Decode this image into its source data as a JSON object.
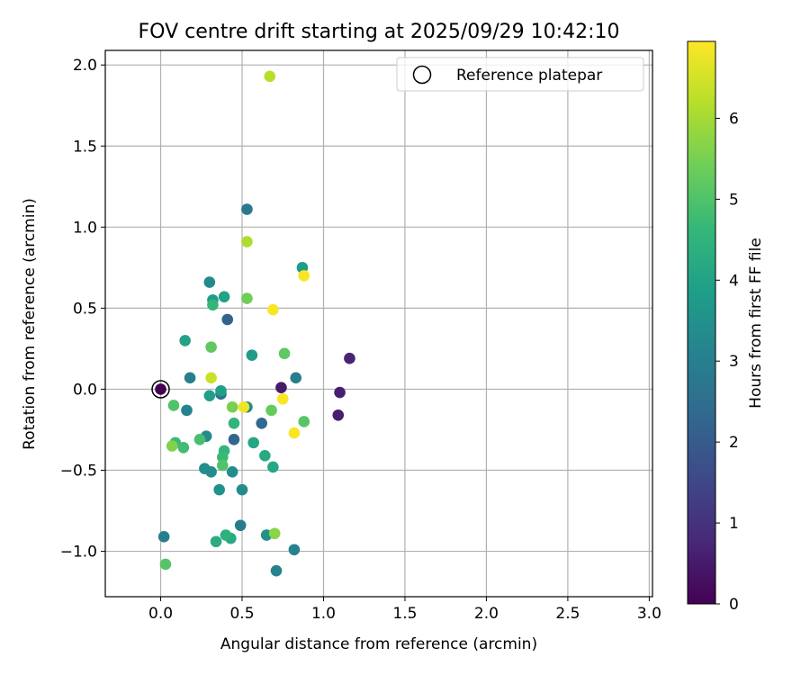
{
  "chart_data": {
    "type": "scatter",
    "title": "FOV centre drift starting at 2025/09/29 10:42:10",
    "xlabel": "Angular distance from reference (arcmin)",
    "ylabel": "Rotation from reference (arcmin)",
    "xlim": [
      -0.34,
      3.02
    ],
    "ylim": [
      -1.28,
      2.09
    ],
    "xticks": [
      0.0,
      0.5,
      1.0,
      1.5,
      2.0,
      2.5,
      3.0
    ],
    "xtick_labels": [
      "0.0",
      "0.5",
      "1.0",
      "1.5",
      "2.0",
      "2.5",
      "3.0"
    ],
    "yticks": [
      -1.0,
      -0.5,
      0.0,
      0.5,
      1.0,
      1.5,
      2.0
    ],
    "ytick_labels": [
      "−1.0",
      "−0.5",
      "0.0",
      "0.5",
      "1.0",
      "1.5",
      "2.0"
    ],
    "grid": true,
    "legend": {
      "placement": "top-right",
      "entries": [
        "Reference platepar"
      ]
    },
    "colorbar": {
      "label": "Hours from first FF file",
      "colormap": "viridis",
      "range": [
        0,
        6.95
      ],
      "ticks": [
        0,
        1,
        2,
        3,
        4,
        5,
        6
      ],
      "tick_labels": [
        "0",
        "1",
        "2",
        "3",
        "4",
        "5",
        "6"
      ],
      "stops": [
        "#440154",
        "#482878",
        "#3e4989",
        "#31688e",
        "#26828e",
        "#1f9e89",
        "#35b779",
        "#6ece58",
        "#b5de2b",
        "#fde725"
      ]
    },
    "reference_point": {
      "x": 0.0,
      "y": 0.0
    },
    "points": [
      {
        "x": 0.0,
        "y": 0.0,
        "h": 0.0
      },
      {
        "x": 0.74,
        "y": 0.01,
        "h": 0.5
      },
      {
        "x": 1.1,
        "y": -0.02,
        "h": 0.6
      },
      {
        "x": 1.09,
        "y": -0.16,
        "h": 0.6
      },
      {
        "x": 1.16,
        "y": 0.19,
        "h": 0.7
      },
      {
        "x": 0.41,
        "y": 0.43,
        "h": 2.2
      },
      {
        "x": 0.45,
        "y": -0.31,
        "h": 2.3
      },
      {
        "x": 0.62,
        "y": -0.21,
        "h": 2.4
      },
      {
        "x": 0.37,
        "y": -0.03,
        "h": 2.6
      },
      {
        "x": 0.53,
        "y": 1.11,
        "h": 2.8
      },
      {
        "x": 0.49,
        "y": -0.84,
        "h": 2.9
      },
      {
        "x": 0.83,
        "y": 0.07,
        "h": 3.0
      },
      {
        "x": 0.02,
        "y": -0.91,
        "h": 3.0
      },
      {
        "x": 0.18,
        "y": 0.07,
        "h": 3.0
      },
      {
        "x": 0.16,
        "y": -0.13,
        "h": 3.1
      },
      {
        "x": 0.71,
        "y": -1.12,
        "h": 3.1
      },
      {
        "x": 0.82,
        "y": -0.99,
        "h": 3.1
      },
      {
        "x": 0.3,
        "y": 0.66,
        "h": 3.3
      },
      {
        "x": 0.28,
        "y": -0.29,
        "h": 3.3
      },
      {
        "x": 0.27,
        "y": -0.49,
        "h": 3.4
      },
      {
        "x": 0.31,
        "y": -0.51,
        "h": 3.4
      },
      {
        "x": 0.44,
        "y": -0.51,
        "h": 3.4
      },
      {
        "x": 0.5,
        "y": -0.62,
        "h": 3.4
      },
      {
        "x": 0.36,
        "y": -0.62,
        "h": 3.5
      },
      {
        "x": 0.53,
        "y": -0.11,
        "h": 3.4
      },
      {
        "x": 0.65,
        "y": -0.9,
        "h": 3.5
      },
      {
        "x": 0.32,
        "y": 0.55,
        "h": 3.8
      },
      {
        "x": 0.56,
        "y": 0.21,
        "h": 3.8
      },
      {
        "x": 0.87,
        "y": 0.75,
        "h": 3.8
      },
      {
        "x": 0.3,
        "y": -0.04,
        "h": 3.9
      },
      {
        "x": 0.37,
        "y": -0.01,
        "h": 3.9
      },
      {
        "x": 0.15,
        "y": 0.3,
        "h": 4.0
      },
      {
        "x": 0.39,
        "y": 0.57,
        "h": 4.0
      },
      {
        "x": 0.57,
        "y": -0.33,
        "h": 4.1
      },
      {
        "x": 0.69,
        "y": -0.48,
        "h": 4.1
      },
      {
        "x": 0.64,
        "y": -0.41,
        "h": 4.2
      },
      {
        "x": 0.43,
        "y": -0.92,
        "h": 4.2
      },
      {
        "x": 0.34,
        "y": -0.94,
        "h": 4.3
      },
      {
        "x": 0.4,
        "y": -0.9,
        "h": 4.4
      },
      {
        "x": 0.45,
        "y": -0.21,
        "h": 4.5
      },
      {
        "x": 0.39,
        "y": -0.38,
        "h": 4.6
      },
      {
        "x": 0.38,
        "y": -0.42,
        "h": 4.7
      },
      {
        "x": 0.32,
        "y": 0.52,
        "h": 4.6
      },
      {
        "x": 0.09,
        "y": -0.33,
        "h": 4.7
      },
      {
        "x": 0.14,
        "y": -0.36,
        "h": 4.8
      },
      {
        "x": 0.24,
        "y": -0.31,
        "h": 4.9
      },
      {
        "x": 0.08,
        "y": -0.1,
        "h": 5.0
      },
      {
        "x": 0.38,
        "y": -0.47,
        "h": 5.0
      },
      {
        "x": 0.03,
        "y": -1.08,
        "h": 5.1
      },
      {
        "x": 0.88,
        "y": -0.2,
        "h": 5.1
      },
      {
        "x": 0.76,
        "y": 0.22,
        "h": 5.2
      },
      {
        "x": 0.31,
        "y": 0.26,
        "h": 5.2
      },
      {
        "x": 0.68,
        "y": -0.13,
        "h": 5.3
      },
      {
        "x": 0.53,
        "y": 0.56,
        "h": 5.4
      },
      {
        "x": 0.44,
        "y": -0.11,
        "h": 5.5
      },
      {
        "x": 0.07,
        "y": -0.35,
        "h": 5.6
      },
      {
        "x": 0.7,
        "y": -0.89,
        "h": 5.7
      },
      {
        "x": 0.53,
        "y": 0.91,
        "h": 6.1
      },
      {
        "x": 0.67,
        "y": 1.93,
        "h": 6.2
      },
      {
        "x": 0.31,
        "y": 0.07,
        "h": 6.4
      },
      {
        "x": 0.51,
        "y": -0.11,
        "h": 6.8
      },
      {
        "x": 0.69,
        "y": 0.49,
        "h": 6.9
      },
      {
        "x": 0.88,
        "y": 0.7,
        "h": 6.9
      },
      {
        "x": 0.75,
        "y": -0.06,
        "h": 6.9
      },
      {
        "x": 0.82,
        "y": -0.27,
        "h": 6.9
      }
    ]
  }
}
